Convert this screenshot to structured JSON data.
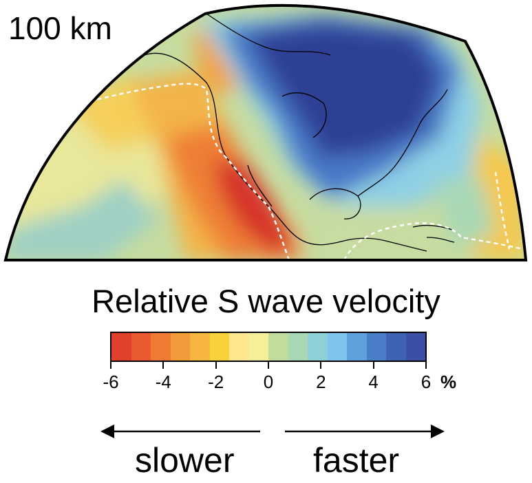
{
  "figure": {
    "depth_label": "100 km",
    "colorbar": {
      "title": "Relative S wave velocity",
      "unit": "%",
      "tick_labels": [
        "-6",
        "-4",
        "-2",
        "0",
        "2",
        "4",
        "6"
      ],
      "range": [
        -6,
        6
      ],
      "bin_colors": [
        "#e0402c",
        "#e95a30",
        "#ee7a34",
        "#f39a3c",
        "#f5b53e",
        "#f7d23a",
        "#fde68e",
        "#f4ef98",
        "#c2dc9e",
        "#a8d8b6",
        "#8fcfd6",
        "#7cc4ec",
        "#5ea0db",
        "#4a7ec8",
        "#3e62b4",
        "#3a4fa5"
      ]
    },
    "direction": {
      "left": "slower",
      "right": "faster"
    },
    "map": {
      "colors": {
        "fastest": "#2e3f94",
        "fast": "#4a78c6",
        "slightly_fast": "#8fd0e6",
        "neutral": "#f4ef98",
        "slightly_slow": "#f5c84e",
        "slow": "#ef8a3a",
        "slowest": "#d6302a",
        "plate_boundary": "#ffffff",
        "coastline": "#000000"
      }
    }
  }
}
